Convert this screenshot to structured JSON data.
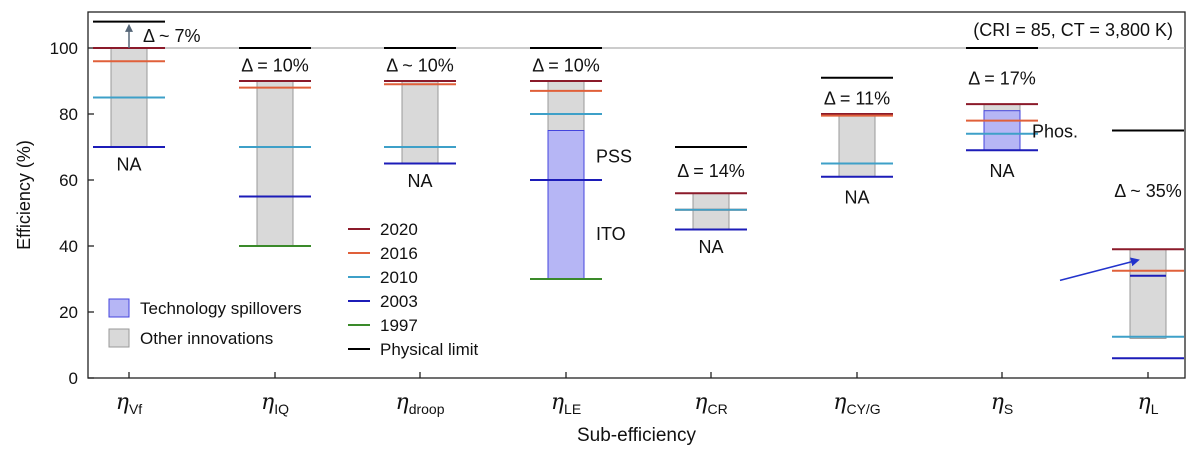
{
  "chart_data": {
    "type": "bar",
    "title": "",
    "xlabel": "Sub-efficiency",
    "ylabel": "Efficiency (%)",
    "ylim": [
      0,
      108
    ],
    "yticks": [
      0,
      20,
      40,
      60,
      80,
      100
    ],
    "ytick_labels": [
      "0",
      "20",
      "40",
      "60",
      "80",
      "100"
    ],
    "reference_line": 100,
    "corner_note": "(CRI = 85, CT = 3,800 K)",
    "legend": {
      "position": "center",
      "years": [
        {
          "label": "2020",
          "color": "#8b1a2a"
        },
        {
          "label": "2016",
          "color": "#e0603a"
        },
        {
          "label": "2010",
          "color": "#3ea0c8"
        },
        {
          "label": "2003",
          "color": "#1c1cb8"
        },
        {
          "label": "1997",
          "color": "#3a8a2a"
        }
      ],
      "fills": [
        {
          "label": "Technology spillovers",
          "color": "#b6b6f5",
          "stroke": "#4444dd"
        },
        {
          "label": "Other innovations",
          "color": "#d9d9d9",
          "stroke": "#999999"
        }
      ],
      "limit": {
        "label": "Physical limit",
        "color": "#000000"
      }
    },
    "categories": [
      {
        "symbol": "η",
        "subscript": "Vf",
        "limit": 108,
        "delta_label": "Δ ~ 7%",
        "delta_y": 104,
        "gray": [
          70,
          100
        ],
        "blue": null,
        "lines": {
          "2020": 100,
          "2016": 96,
          "2010": 85,
          "2003": 70,
          "1997": null
        },
        "annotations": [
          {
            "text": "NA",
            "y": 65
          }
        ],
        "arrow": {
          "from": 100,
          "to": 107
        }
      },
      {
        "symbol": "η",
        "subscript": "IQ",
        "limit": 100,
        "delta_label": "Δ = 10%",
        "delta_y": 95,
        "gray": [
          40,
          90
        ],
        "blue": null,
        "lines": {
          "2020": 90,
          "2016": 88,
          "2010": 70,
          "2003": 55,
          "1997": 40
        },
        "annotations": []
      },
      {
        "symbol": "η",
        "subscript": "droop",
        "limit": 100,
        "delta_label": "Δ ~ 10%",
        "delta_y": 95,
        "gray": [
          65,
          90
        ],
        "blue": null,
        "lines": {
          "2020": 90,
          "2016": 89,
          "2010": 70,
          "2003": 65,
          "1997": null
        },
        "annotations": [
          {
            "text": "NA",
            "y": 60
          }
        ]
      },
      {
        "symbol": "η",
        "subscript": "LE",
        "limit": 100,
        "delta_label": "Δ = 10%",
        "delta_y": 95,
        "gray": [
          30,
          90
        ],
        "blue": [
          30,
          75
        ],
        "lines": {
          "2020": 90,
          "2016": 87,
          "2010": 80,
          "2003": 60,
          "1997": 30
        },
        "annotations": [
          {
            "text": "PSS",
            "y": 67.5,
            "side": "right"
          },
          {
            "text": "ITO",
            "y": 44,
            "side": "right"
          }
        ]
      },
      {
        "symbol": "η",
        "subscript": "CR",
        "limit": 70,
        "delta_label": "Δ = 14%",
        "delta_y": 63,
        "gray": [
          45,
          56
        ],
        "blue": null,
        "lines": {
          "2020": 56,
          "2016": 51,
          "2010": 51,
          "2003": 45,
          "1997": null
        },
        "annotations": [
          {
            "text": "NA",
            "y": 40
          }
        ]
      },
      {
        "symbol": "η",
        "subscript": "CY/G",
        "limit": 91,
        "delta_label": "Δ = 11%",
        "delta_y": 85,
        "gray": [
          61,
          80
        ],
        "blue": null,
        "lines": {
          "2020": 80,
          "2016": 79.5,
          "2010": 65,
          "2003": 61,
          "1997": null
        },
        "annotations": [
          {
            "text": "NA",
            "y": 55
          }
        ]
      },
      {
        "symbol": "η",
        "subscript": "S",
        "limit": 100,
        "delta_label": "Δ = 17%",
        "delta_y": 91,
        "gray": [
          69,
          83
        ],
        "blue": [
          69,
          81
        ],
        "lines": {
          "2020": 83,
          "2016": 78,
          "2010": 74,
          "2003": 69,
          "1997": null
        },
        "annotations": [
          {
            "text": "NA",
            "y": 63
          },
          {
            "text": "Phos.",
            "y": 75,
            "side": "right"
          }
        ]
      },
      {
        "symbol": "η",
        "subscript": "L",
        "limit": 75,
        "delta_label": "Δ ~ 35%",
        "delta_y": 57,
        "gray": [
          12,
          39
        ],
        "blue": null,
        "lines": {
          "2020": 39,
          "2016": 32.5,
          "2010": 12.5,
          "2003": 6,
          "1997": null
        },
        "extra_lines": [
          {
            "color": "#1c1cb8",
            "value": 31
          }
        ],
        "annotations": [],
        "arrow": {
          "from": 32,
          "to": 38,
          "diagonal": true
        }
      }
    ]
  }
}
